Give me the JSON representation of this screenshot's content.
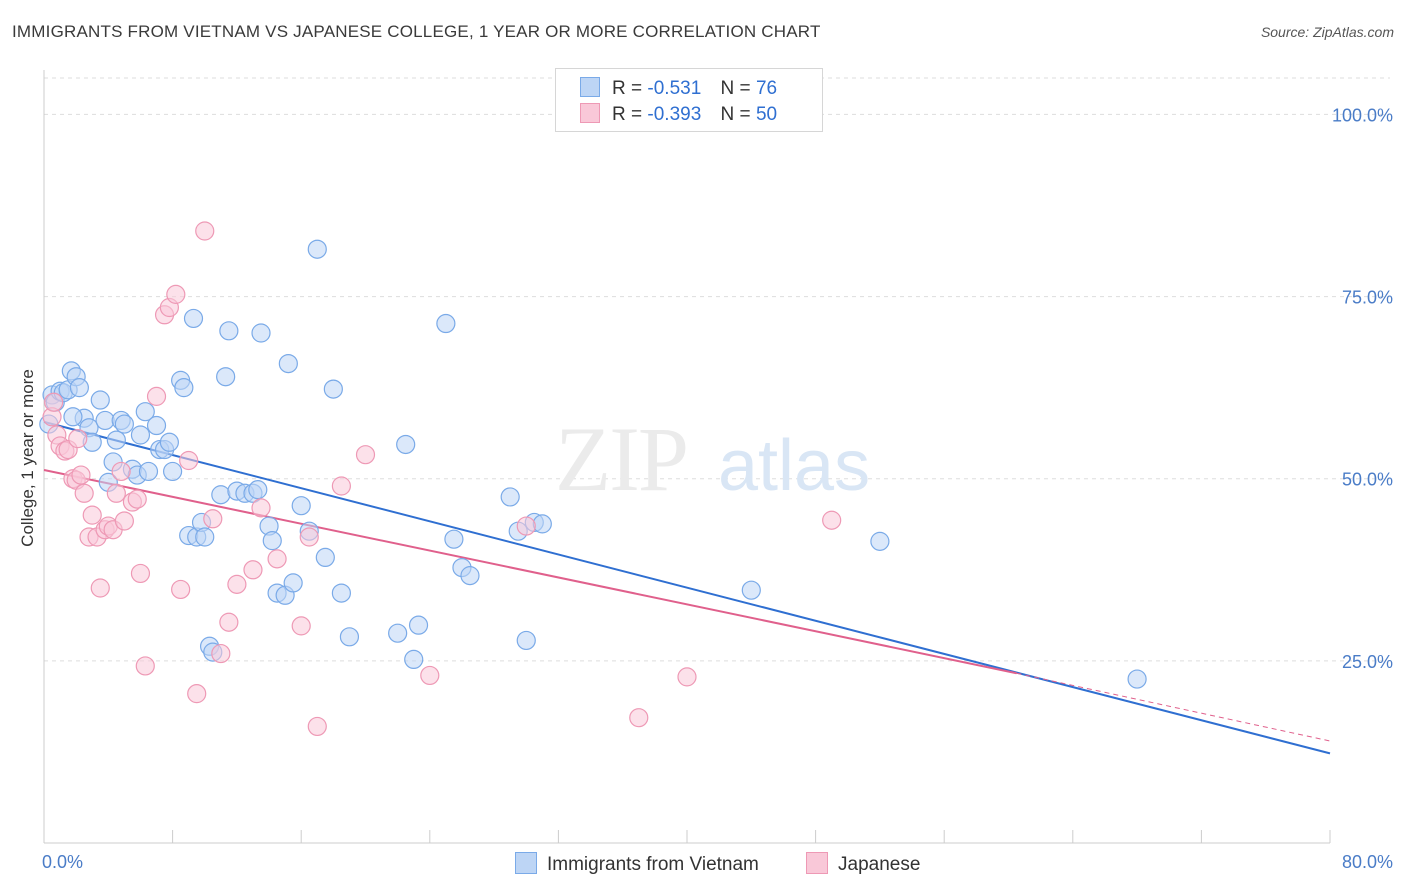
{
  "header": {
    "title": "IMMIGRANTS FROM VIETNAM VS JAPANESE COLLEGE, 1 YEAR OR MORE CORRELATION CHART",
    "source": "Source: ZipAtlas.com"
  },
  "watermark": {
    "zip": "ZIP",
    "atlas": "atlas"
  },
  "legend": {
    "rows": [
      {
        "r_label": "R =",
        "r_value": "-0.531",
        "n_label": "N =",
        "n_value": "76"
      },
      {
        "r_label": "R =",
        "r_value": "-0.393",
        "n_label": "N =",
        "n_value": "50"
      }
    ]
  },
  "chart_data": {
    "type": "scatter",
    "title": "IMMIGRANTS FROM VIETNAM VS JAPANESE COLLEGE, 1 YEAR OR MORE CORRELATION CHART",
    "xlabel": "",
    "ylabel": "College, 1 year or more",
    "xlim": [
      0,
      80
    ],
    "ylim": [
      0,
      105
    ],
    "x_ticks": [
      "0.0%",
      "80.0%"
    ],
    "y_ticks": [
      {
        "value": 25,
        "label": "25.0%"
      },
      {
        "value": 50,
        "label": "50.0%"
      },
      {
        "value": 75,
        "label": "75.0%"
      },
      {
        "value": 100,
        "label": "100.0%"
      }
    ],
    "grid": "horizontal dashed",
    "legend_placement": "top-center and bottom",
    "series": [
      {
        "name": "Immigrants from Vietnam",
        "color": "#7aaae8",
        "fill": "#bdd5f5",
        "line_color": "#2f6fd1",
        "trend": {
          "x": [
            0,
            80
          ],
          "y": [
            57.8,
            12.3
          ]
        },
        "points": [
          [
            0.5,
            61.5
          ],
          [
            0.7,
            60.5
          ],
          [
            1.0,
            62.0
          ],
          [
            1.2,
            61.8
          ],
          [
            1.5,
            62.2
          ],
          [
            1.7,
            64.8
          ],
          [
            2.0,
            64.0
          ],
          [
            2.2,
            62.5
          ],
          [
            2.5,
            58.3
          ],
          [
            2.8,
            57.0
          ],
          [
            3.0,
            55.0
          ],
          [
            3.5,
            60.8
          ],
          [
            3.8,
            58.0
          ],
          [
            4.0,
            49.5
          ],
          [
            4.3,
            52.3
          ],
          [
            4.5,
            55.3
          ],
          [
            4.8,
            58.0
          ],
          [
            5.0,
            57.5
          ],
          [
            5.5,
            51.3
          ],
          [
            5.8,
            50.5
          ],
          [
            6.0,
            56.0
          ],
          [
            6.3,
            59.2
          ],
          [
            6.5,
            51.0
          ],
          [
            7.0,
            57.3
          ],
          [
            7.2,
            54.0
          ],
          [
            7.5,
            54.0
          ],
          [
            7.8,
            55.0
          ],
          [
            8.0,
            51.0
          ],
          [
            8.5,
            63.5
          ],
          [
            8.7,
            62.5
          ],
          [
            9.0,
            42.2
          ],
          [
            9.3,
            72.0
          ],
          [
            9.5,
            42.0
          ],
          [
            9.8,
            44.0
          ],
          [
            10.0,
            42.0
          ],
          [
            10.3,
            27.0
          ],
          [
            10.5,
            26.2
          ],
          [
            11.0,
            47.8
          ],
          [
            11.3,
            64.0
          ],
          [
            11.5,
            70.3
          ],
          [
            12.0,
            48.3
          ],
          [
            12.5,
            48.0
          ],
          [
            13.0,
            48.0
          ],
          [
            13.3,
            48.5
          ],
          [
            13.5,
            70.0
          ],
          [
            14.0,
            43.5
          ],
          [
            14.2,
            41.5
          ],
          [
            14.5,
            34.3
          ],
          [
            15.0,
            34.0
          ],
          [
            15.2,
            65.8
          ],
          [
            15.5,
            35.7
          ],
          [
            16.0,
            46.3
          ],
          [
            16.5,
            42.8
          ],
          [
            17.0,
            81.5
          ],
          [
            17.5,
            39.2
          ],
          [
            18.0,
            62.3
          ],
          [
            18.5,
            34.3
          ],
          [
            19.0,
            28.3
          ],
          [
            22.0,
            28.8
          ],
          [
            22.5,
            54.7
          ],
          [
            23.0,
            25.2
          ],
          [
            23.3,
            29.9
          ],
          [
            25.0,
            71.3
          ],
          [
            25.5,
            41.7
          ],
          [
            26.0,
            37.8
          ],
          [
            26.5,
            36.7
          ],
          [
            29.0,
            47.5
          ],
          [
            29.5,
            42.8
          ],
          [
            30.0,
            27.8
          ],
          [
            30.5,
            44.0
          ],
          [
            31.0,
            43.8
          ],
          [
            44.0,
            34.7
          ],
          [
            52.0,
            41.4
          ],
          [
            68.0,
            22.5
          ],
          [
            0.3,
            57.5
          ],
          [
            1.8,
            58.5
          ]
        ]
      },
      {
        "name": "Japanese",
        "color": "#ee99b5",
        "fill": "#f9c8d8",
        "line_color": "#e0608c",
        "trend": {
          "x": [
            0,
            60.5
          ],
          "y": [
            51.2,
            23.3
          ]
        },
        "trend_dashed": {
          "x": [
            60.5,
            80
          ],
          "y": [
            23.3,
            14.0
          ]
        },
        "points": [
          [
            0.5,
            58.5
          ],
          [
            0.8,
            56.0
          ],
          [
            1.0,
            54.5
          ],
          [
            1.3,
            53.8
          ],
          [
            1.5,
            54.0
          ],
          [
            1.8,
            50.0
          ],
          [
            2.0,
            49.8
          ],
          [
            2.3,
            50.5
          ],
          [
            2.5,
            48.0
          ],
          [
            2.8,
            42.0
          ],
          [
            3.0,
            45.0
          ],
          [
            3.3,
            42.0
          ],
          [
            3.5,
            35.0
          ],
          [
            3.8,
            43.0
          ],
          [
            4.0,
            43.5
          ],
          [
            4.3,
            43.0
          ],
          [
            4.5,
            48.0
          ],
          [
            4.8,
            51.0
          ],
          [
            5.0,
            44.2
          ],
          [
            5.5,
            46.8
          ],
          [
            5.8,
            47.2
          ],
          [
            6.0,
            37.0
          ],
          [
            6.3,
            24.3
          ],
          [
            7.0,
            61.3
          ],
          [
            7.5,
            72.5
          ],
          [
            7.8,
            73.5
          ],
          [
            8.2,
            75.3
          ],
          [
            8.5,
            34.8
          ],
          [
            9.0,
            52.5
          ],
          [
            9.5,
            20.5
          ],
          [
            10.0,
            84.0
          ],
          [
            10.5,
            44.5
          ],
          [
            11.0,
            26.0
          ],
          [
            11.5,
            30.3
          ],
          [
            12.0,
            35.5
          ],
          [
            13.0,
            37.5
          ],
          [
            13.5,
            46.0
          ],
          [
            14.5,
            39.0
          ],
          [
            16.0,
            29.8
          ],
          [
            16.5,
            42.0
          ],
          [
            17.0,
            16.0
          ],
          [
            18.5,
            49.0
          ],
          [
            20.0,
            53.3
          ],
          [
            24.0,
            23.0
          ],
          [
            30.0,
            43.5
          ],
          [
            37.0,
            17.2
          ],
          [
            49.0,
            44.3
          ],
          [
            40.0,
            22.8
          ],
          [
            0.6,
            60.5
          ],
          [
            2.1,
            55.5
          ]
        ]
      }
    ]
  }
}
